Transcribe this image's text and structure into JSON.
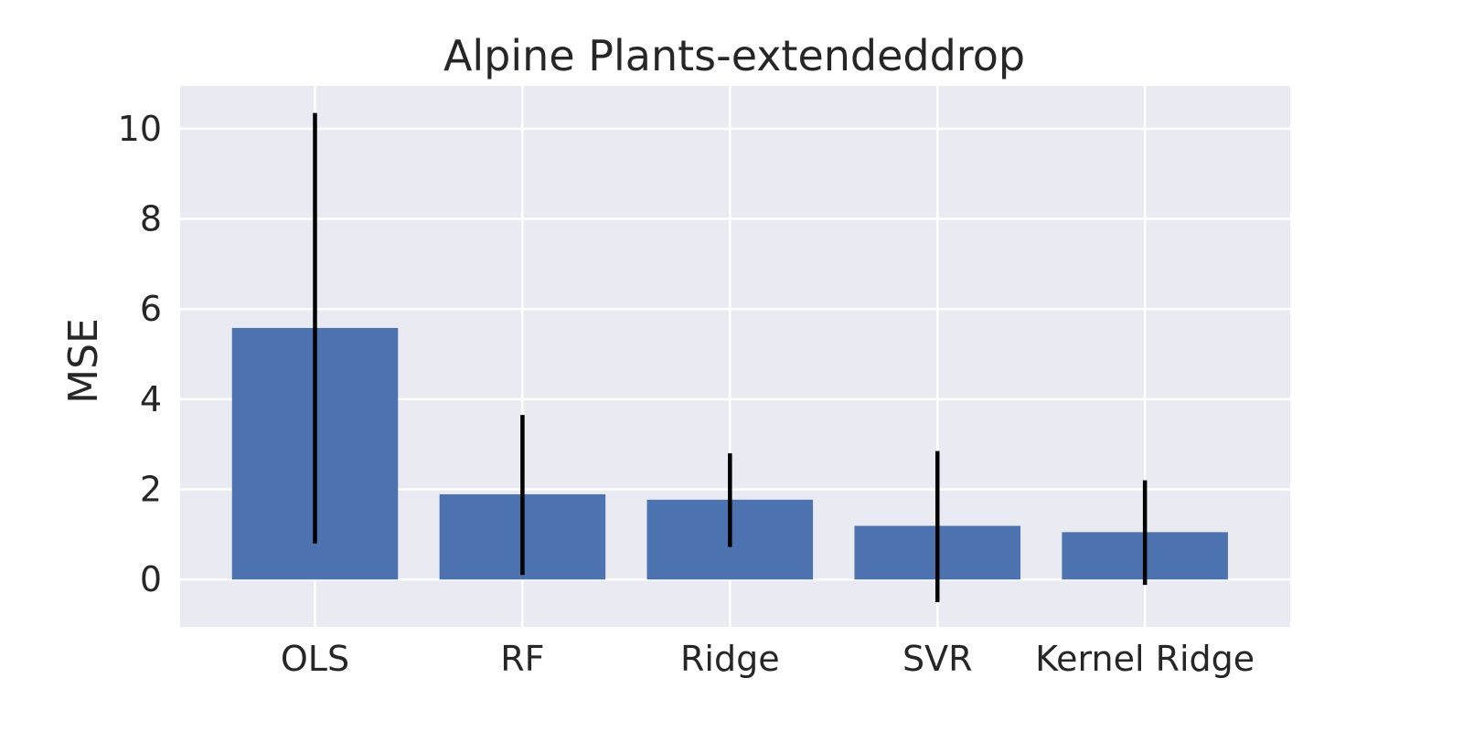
{
  "chart_data": {
    "type": "bar",
    "title": "Alpine Plants-extendeddrop",
    "xlabel": "",
    "ylabel": "MSE",
    "categories": [
      "OLS",
      "RF",
      "Ridge",
      "SVR",
      "Kernel Ridge"
    ],
    "values": [
      5.58,
      1.89,
      1.77,
      1.19,
      1.05
    ],
    "error_low": [
      0.8,
      0.1,
      0.72,
      -0.5,
      -0.12
    ],
    "error_high": [
      10.35,
      3.65,
      2.8,
      2.85,
      2.2
    ],
    "ylim": [
      -1.05,
      10.95
    ],
    "yticks": [
      0,
      2,
      4,
      6,
      8,
      10
    ],
    "grid": true,
    "legend": "none",
    "colors": {
      "bar": "#4c72b0",
      "error_bar": "#000000",
      "plot_background": "#eaeaf2",
      "grid": "#ffffff",
      "text": "#262626"
    }
  }
}
